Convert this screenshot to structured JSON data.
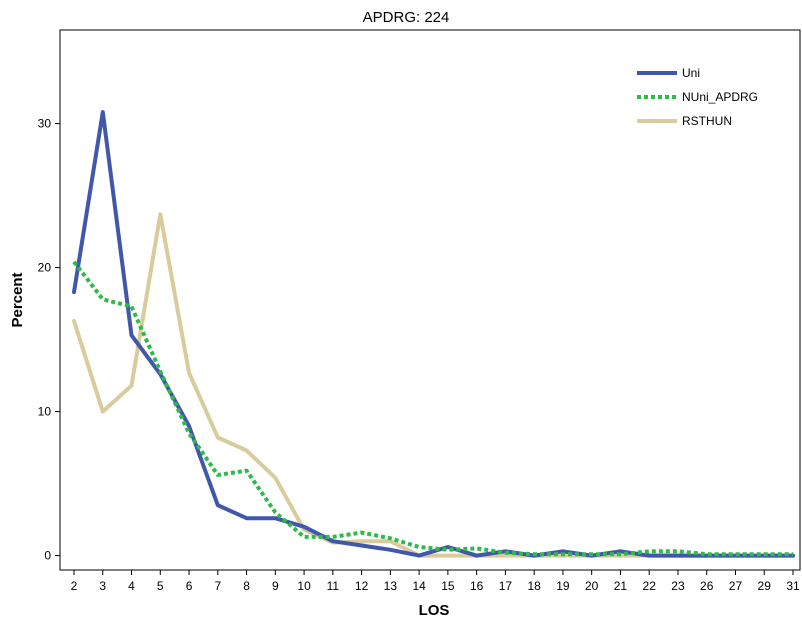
{
  "chart_data": {
    "type": "line",
    "title": "APDRG: 224",
    "xlabel": "LOS",
    "ylabel": "Percent",
    "categories": [
      "2",
      "3",
      "4",
      "5",
      "6",
      "7",
      "8",
      "9",
      "10",
      "11",
      "12",
      "13",
      "14",
      "15",
      "16",
      "17",
      "18",
      "19",
      "20",
      "21",
      "22",
      "23",
      "26",
      "27",
      "29",
      "31"
    ],
    "y_ticks": [
      0,
      10,
      20,
      30
    ],
    "ylim": [
      -1,
      36.5
    ],
    "grid": false,
    "legend_position": "top-right",
    "series": [
      {
        "name": "Uni",
        "color": "#4057ab",
        "style": "solid",
        "values": [
          18.3,
          30.8,
          15.3,
          12.6,
          9.0,
          3.5,
          2.6,
          2.6,
          2.0,
          1.0,
          0.7,
          0.4,
          0.0,
          0.6,
          0.0,
          0.3,
          0.0,
          0.3,
          0.0,
          0.3,
          0.0,
          0.0,
          0.0,
          0.0,
          0.0,
          0.0
        ]
      },
      {
        "name": "NUni_APDRG",
        "color": "#2fba4a",
        "style": "dotted",
        "values": [
          20.4,
          17.8,
          17.3,
          12.8,
          8.5,
          5.6,
          5.9,
          3.0,
          1.3,
          1.3,
          1.6,
          1.2,
          0.6,
          0.4,
          0.5,
          0.2,
          0.1,
          0.1,
          0.1,
          0.1,
          0.3,
          0.3,
          0.1,
          0.1,
          0.1,
          0.1
        ]
      },
      {
        "name": "RSTHUN",
        "color": "#d8cc9c",
        "style": "solid",
        "values": [
          16.3,
          10.0,
          11.8,
          23.7,
          12.7,
          8.2,
          7.3,
          5.4,
          1.8,
          0.9,
          1.0,
          1.0,
          0.0,
          0.0,
          0.0,
          0.0,
          0.0,
          0.0,
          0.0,
          0.0,
          0.0,
          0.0,
          0.0,
          0.0,
          0.0,
          0.0
        ]
      }
    ]
  }
}
